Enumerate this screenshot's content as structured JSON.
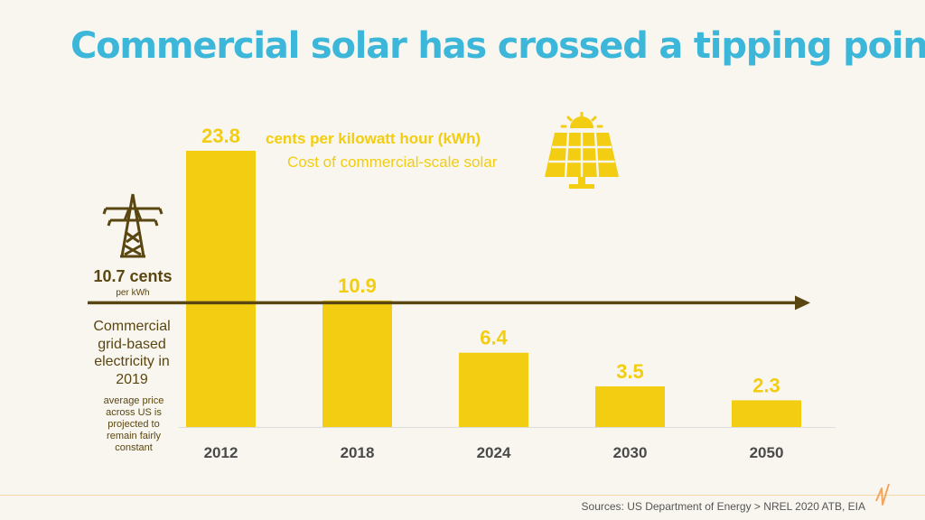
{
  "title": "Commercial solar has crossed a tipping point",
  "chart_data": {
    "type": "bar",
    "categories": [
      "2012",
      "2018",
      "2024",
      "2030",
      "2050"
    ],
    "values": [
      23.8,
      10.9,
      6.4,
      3.5,
      2.3
    ],
    "data_labels": [
      "23.8",
      "10.9",
      "6.4",
      "3.5",
      "2.3"
    ],
    "unit_label": "cents per kilowatt hour (kWh)",
    "series_label": "Cost of commercial-scale solar",
    "reference_line": {
      "value": 10.7,
      "value_label": "10.7 cents",
      "unit_label": "per kWh",
      "label": "Commercial grid-based electricity in 2019",
      "note": "average price across US is projected to remain fairly constant"
    },
    "ylim": [
      0,
      24
    ]
  },
  "colors": {
    "title": "#3cb7d9",
    "bar": "#f2cd12",
    "bar_label": "#f2cd12",
    "reference_line": "#5a4611",
    "category_label": "#4a4a4a",
    "background": "#f8f6ef"
  },
  "icons": {
    "tower": "transmission-tower-icon",
    "solar": "solar-panel-icon",
    "logo": "zigzag-logo-icon"
  },
  "footer": {
    "sources": "Sources: US Department of Energy > NREL 2020 ATB, EIA"
  }
}
